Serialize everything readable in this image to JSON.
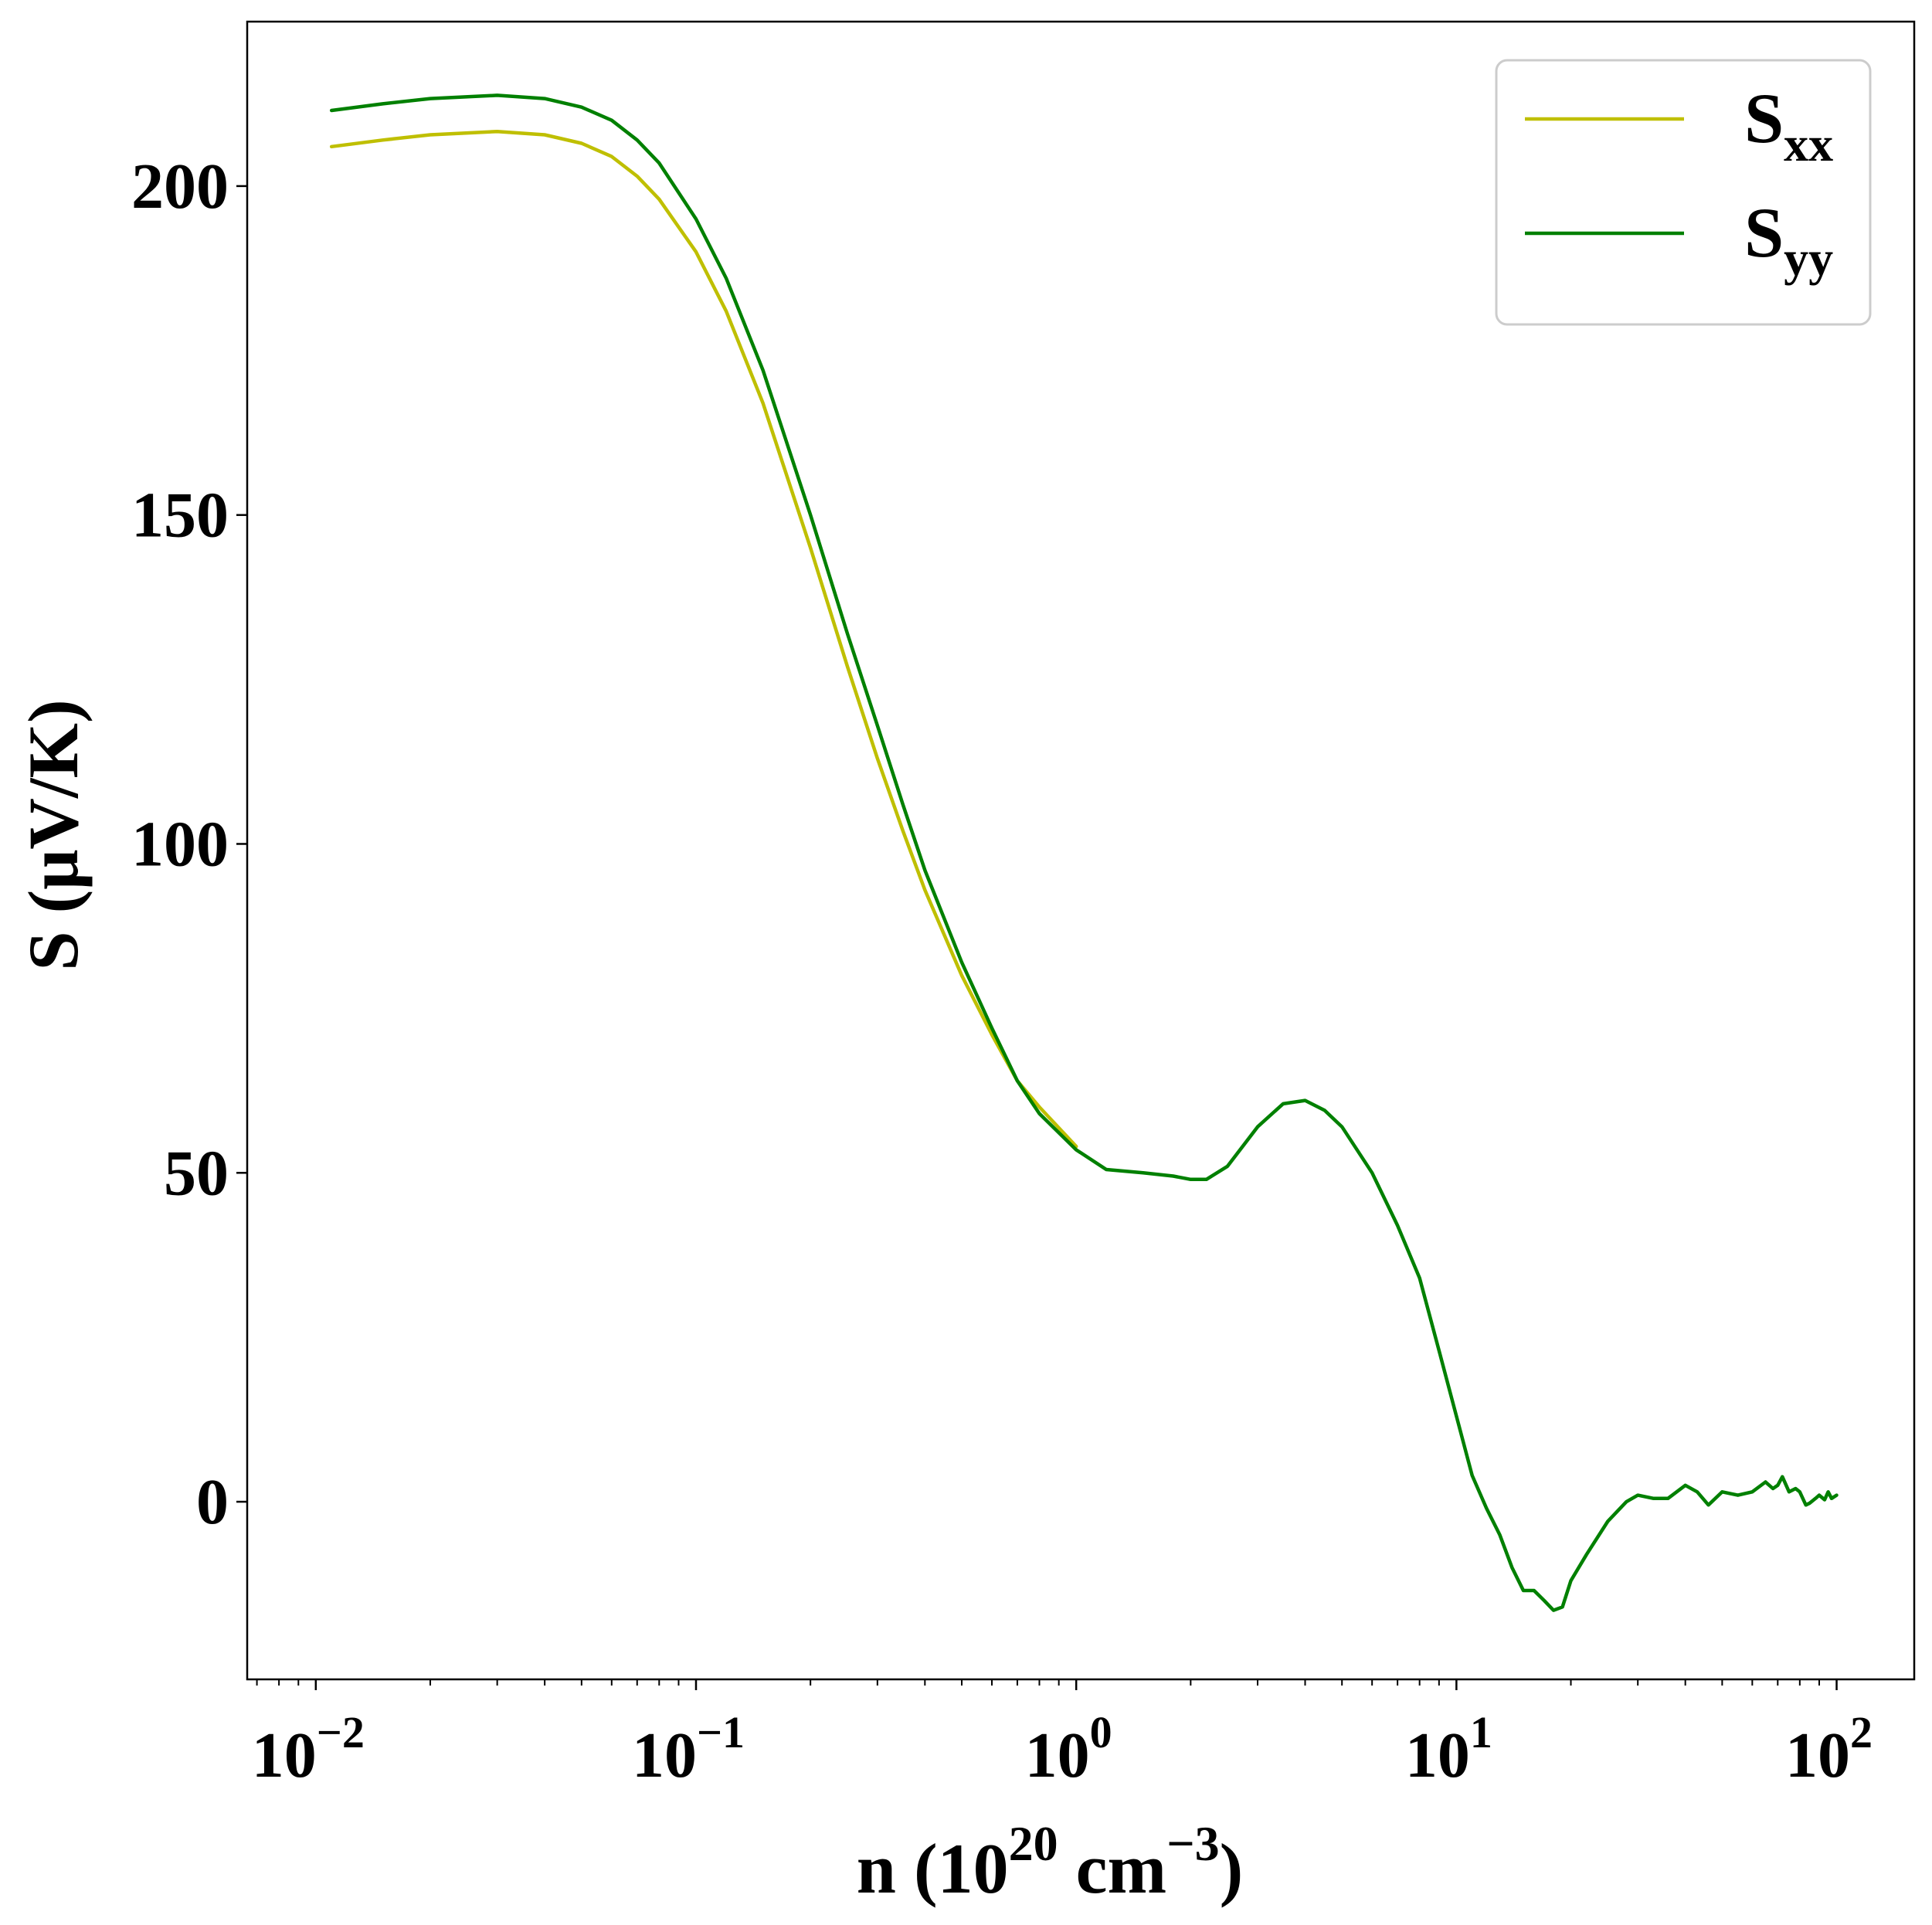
{
  "chart_data": {
    "type": "line",
    "xlabel": {
      "prefix": "n (10",
      "exp1": "20",
      "mid": " cm",
      "exp2": "−3",
      "suffix": ")"
    },
    "ylabel": "S (μV/K)",
    "xscale": "log",
    "xlim": [
      0.0066,
      160
    ],
    "ylim": [
      -27,
      225
    ],
    "grid": false,
    "legend_position": "top-right",
    "y_ticks": [
      0,
      50,
      100,
      150,
      200
    ],
    "x_ticks": [
      {
        "value": 0.01,
        "base": "10",
        "exp": "−2"
      },
      {
        "value": 0.1,
        "base": "10",
        "exp": "−1"
      },
      {
        "value": 1,
        "base": "10",
        "exp": "0"
      },
      {
        "value": 10,
        "base": "10",
        "exp": "1"
      },
      {
        "value": 100,
        "base": "10",
        "exp": "2"
      }
    ],
    "series": [
      {
        "name": "S",
        "subscript": "xx",
        "color": "#bfbf00",
        "x": [
          0.011,
          0.015,
          0.02,
          0.03,
          0.04,
          0.05,
          0.06,
          0.07,
          0.08,
          0.1,
          0.12,
          0.15,
          0.2,
          0.25,
          0.3,
          0.35,
          0.4,
          0.5,
          0.6,
          0.7,
          0.8,
          1.0
        ],
        "y": [
          206,
          207,
          207.8,
          208.3,
          207.8,
          206.5,
          204.5,
          201.5,
          198,
          190,
          181,
          167,
          145,
          127,
          113,
          102,
          93,
          80,
          71,
          64,
          60,
          54
        ]
      },
      {
        "name": "S",
        "subscript": "yy",
        "color": "#008000",
        "x": [
          0.011,
          0.015,
          0.02,
          0.03,
          0.04,
          0.05,
          0.06,
          0.07,
          0.08,
          0.1,
          0.12,
          0.15,
          0.2,
          0.25,
          0.3,
          0.35,
          0.4,
          0.5,
          0.6,
          0.7,
          0.8,
          1.0,
          1.2,
          1.5,
          1.8,
          2.0,
          2.2,
          2.5,
          3.0,
          3.5,
          4.0,
          4.5,
          5.0,
          6.0,
          7.0,
          8.0,
          9.0,
          10.0,
          11.0,
          12.0,
          13.0,
          14.0,
          15.0,
          16.0,
          17.0,
          18.0,
          19.0,
          20.0,
          22.0,
          25.0,
          28.0,
          30.0,
          33.0,
          36.0,
          40.0,
          43.0,
          46.0,
          50.0,
          55.0,
          60.0,
          65.0,
          68.0,
          70.0,
          72.0,
          75.0,
          78.0,
          80.0,
          83.0,
          85.0,
          88.0,
          90.0,
          93.0,
          95.0,
          97.0,
          100.0
        ],
        "y": [
          211.5,
          212.5,
          213.3,
          213.8,
          213.3,
          212,
          210,
          207,
          203.5,
          195,
          186,
          172,
          150,
          132,
          118,
          106,
          96,
          82,
          72,
          64,
          59,
          53.5,
          50.5,
          50,
          49.5,
          49,
          49,
          51,
          57,
          60.5,
          61,
          59.5,
          57,
          50,
          42,
          34,
          23,
          13,
          4,
          -1,
          -5,
          -10,
          -13.5,
          -13.5,
          -15,
          -16.5,
          -16,
          -12,
          -8,
          -3,
          0,
          1,
          0.5,
          0.5,
          2.5,
          1.5,
          -0.5,
          1.5,
          1,
          1.5,
          3,
          2,
          2.5,
          3.8,
          1.5,
          2,
          1.5,
          -0.5,
          -0.2,
          0.5,
          1,
          0.3,
          1.5,
          0.5,
          1
        ]
      }
    ]
  }
}
